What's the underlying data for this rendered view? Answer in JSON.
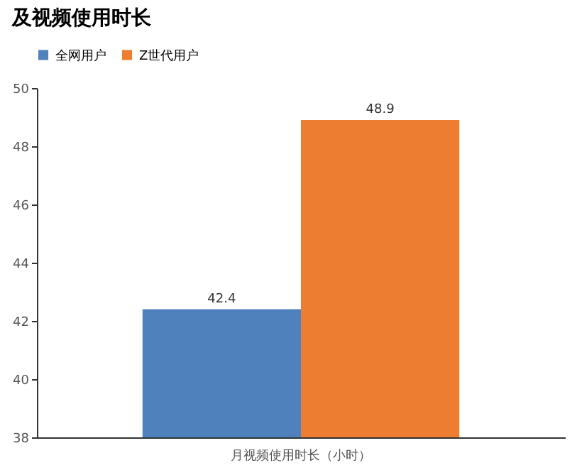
{
  "chart_data": {
    "type": "bar",
    "title": "及视频使用时长",
    "categories": [
      "月视频使用时长（小时）"
    ],
    "series": [
      {
        "name": "全网用户",
        "color": "#4f81bd",
        "values": [
          42.4
        ]
      },
      {
        "name": "Z世代用户",
        "color": "#ed7d31",
        "values": [
          48.9
        ]
      }
    ],
    "ylim": [
      38,
      50
    ],
    "yticks": [
      38,
      40,
      42,
      44,
      46,
      48,
      50
    ],
    "data_labels": true,
    "legend": "top",
    "grid": false
  }
}
